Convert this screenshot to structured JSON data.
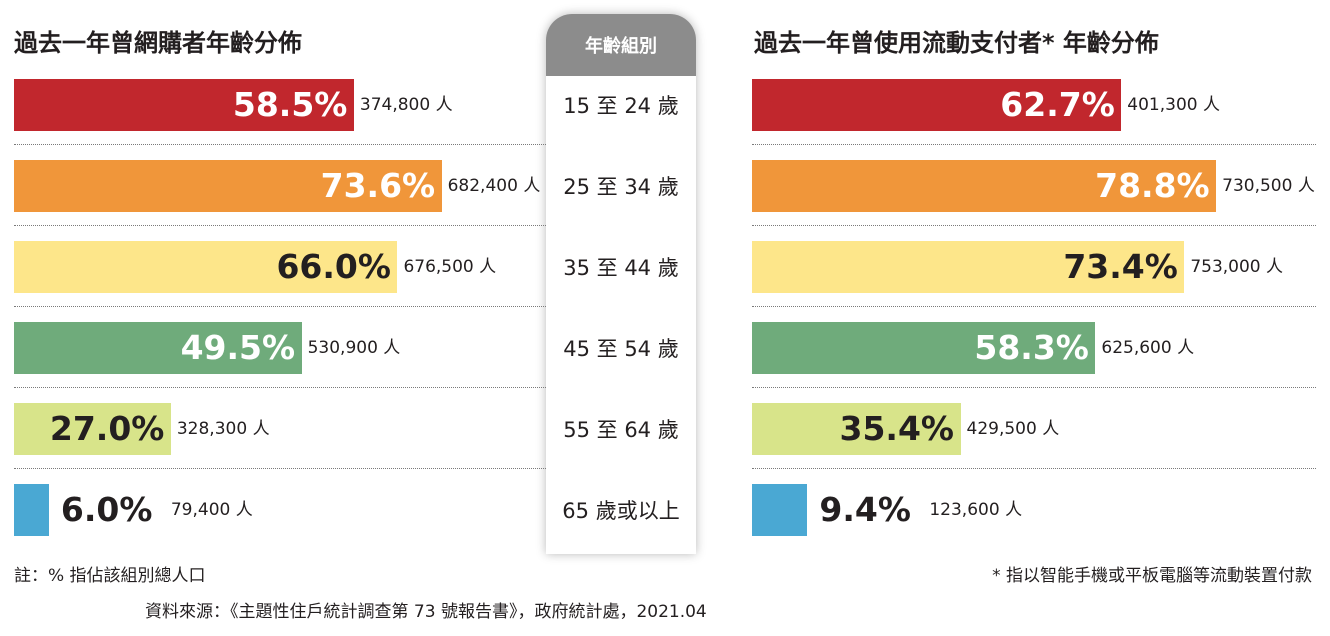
{
  "left_title": "過去一年曾網購者年齡分佈",
  "right_title": "過去一年曾使用流動支付者* 年齡分佈",
  "center_header": "年齡組別",
  "note_left": "註：% 指佔該組別總人口",
  "note_right": "* 指以智能手機或平板電腦等流動裝置付款",
  "source": "資料來源：《主題性住戶統計調查第 73 號報告書》，政府統計處，2021.04",
  "colors": {
    "red": "#c1272d",
    "orange": "#f0963a",
    "yellow": "#fde68a",
    "green": "#6fab7b",
    "lime": "#d8e48a",
    "blue": "#4aa8d3",
    "header_gray": "#8c8c8c"
  },
  "chart_data": [
    {
      "type": "bar",
      "orientation": "horizontal",
      "title": "過去一年曾網購者年齡分佈",
      "categories": [
        "15 至 24 歲",
        "25 至 34 歲",
        "35 至 44 歲",
        "45 至 54 歲",
        "55 至 64 歲",
        "65 歲或以上"
      ],
      "values": [
        58.5,
        73.6,
        66.0,
        49.5,
        27.0,
        6.0
      ],
      "value_labels": [
        "58.5%",
        "73.6%",
        "66.0%",
        "49.5%",
        "27.0%",
        "6.0%"
      ],
      "count_labels": [
        "374,800 人",
        "682,400 人",
        "676,500 人",
        "530,900 人",
        "328,300 人",
        "79,400 人"
      ],
      "bar_colors": [
        "#c1272d",
        "#f0963a",
        "#fde68a",
        "#6fab7b",
        "#d8e48a",
        "#4aa8d3"
      ],
      "label_colors": [
        "#ffffff",
        "#ffffff",
        "#231f20",
        "#ffffff",
        "#231f20",
        "#231f20"
      ],
      "xlim": [
        0,
        100
      ]
    },
    {
      "type": "bar",
      "orientation": "horizontal",
      "title": "過去一年曾使用流動支付者* 年齡分佈",
      "categories": [
        "15 至 24 歲",
        "25 至 34 歲",
        "35 至 44 歲",
        "45 至 54 歲",
        "55 至 64 歲",
        "65 歲或以上"
      ],
      "values": [
        62.7,
        78.8,
        73.4,
        58.3,
        35.4,
        9.4
      ],
      "value_labels": [
        "62.7%",
        "78.8%",
        "73.4%",
        "58.3%",
        "35.4%",
        "9.4%"
      ],
      "count_labels": [
        "401,300 人",
        "730,500 人",
        "753,000 人",
        "625,600 人",
        "429,500 人",
        "123,600 人"
      ],
      "bar_colors": [
        "#c1272d",
        "#f0963a",
        "#fde68a",
        "#6fab7b",
        "#d8e48a",
        "#4aa8d3"
      ],
      "label_colors": [
        "#ffffff",
        "#ffffff",
        "#231f20",
        "#ffffff",
        "#231f20",
        "#231f20"
      ],
      "xlim": [
        0,
        100
      ]
    }
  ]
}
